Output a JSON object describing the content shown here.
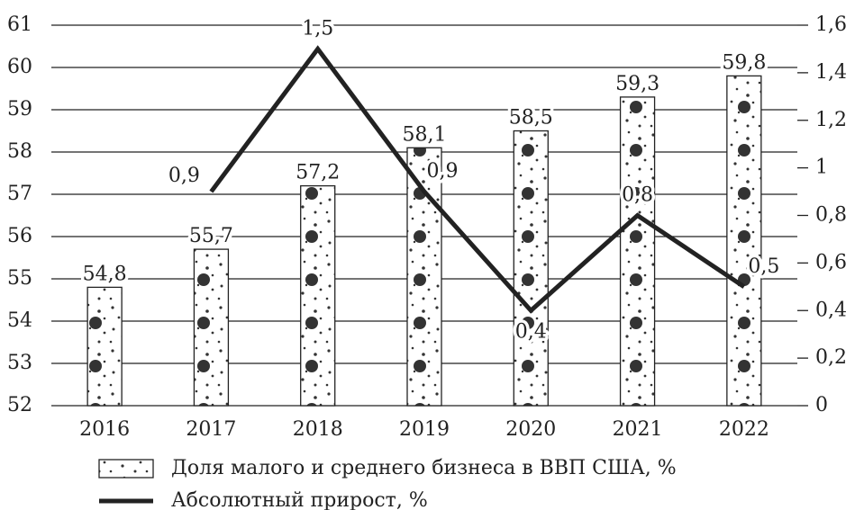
{
  "chart_data": {
    "type": "bar",
    "categories": [
      "2016",
      "2017",
      "2018",
      "2019",
      "2020",
      "2021",
      "2022"
    ],
    "series": [
      {
        "name": "Доля малого и среднего бизнеса в ВВП США, %",
        "type": "bar",
        "color": "#ffffff",
        "values": [
          54.8,
          55.7,
          57.2,
          58.1,
          58.5,
          59.3,
          59.8
        ],
        "value_labels": [
          "54,8",
          "55,7",
          "57,2",
          "58,1",
          "58,5",
          "59,3",
          "59,8"
        ]
      },
      {
        "name": "Абсолютный прирост, %",
        "type": "line",
        "axis": "y2",
        "color": "#222222",
        "values": [
          null,
          0.9,
          1.5,
          0.9,
          0.4,
          0.8,
          0.5
        ],
        "value_labels": [
          null,
          "0,9",
          "1,5",
          "0,9",
          "0,4",
          "0,8",
          "0,5"
        ]
      }
    ],
    "ylim": [
      52,
      61
    ],
    "yticks": [
      52,
      53,
      54,
      55,
      56,
      57,
      58,
      59,
      60,
      61
    ],
    "y2lim": [
      0,
      1.6
    ],
    "y2ticks": [
      0,
      {
        "value": 0.2,
        "label": "0,2"
      },
      {
        "value": 0.4,
        "label": "0,4"
      },
      {
        "value": 0.6,
        "label": "0,6"
      },
      {
        "value": 0.8,
        "label": "0,8"
      },
      1,
      {
        "value": 1.2,
        "label": "1,2"
      },
      {
        "value": 1.4,
        "label": "1,4"
      },
      {
        "value": 1.6,
        "label": "1,6"
      }
    ],
    "grid": true
  }
}
